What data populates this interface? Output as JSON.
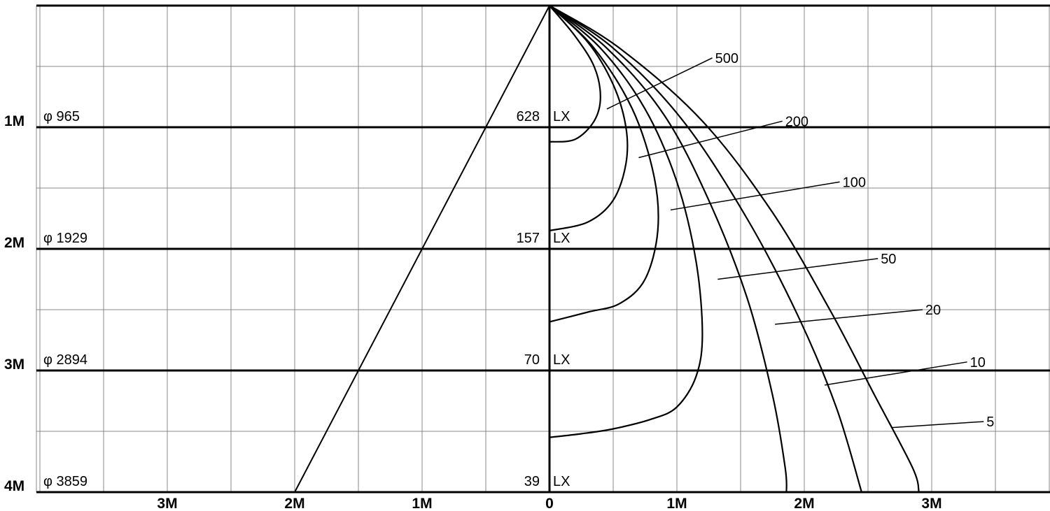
{
  "chart_data": {
    "type": "line",
    "title": "",
    "x_unit": "M",
    "y_unit": "M",
    "xlim": [
      -4,
      4
    ],
    "ylim": [
      4,
      0
    ],
    "grid": true,
    "x_tick_labels": [
      {
        "value": -3,
        "label": "3M"
      },
      {
        "value": -2,
        "label": "2M"
      },
      {
        "value": -1,
        "label": "1M"
      },
      {
        "value": 0,
        "label": "0"
      },
      {
        "value": 1,
        "label": "1M"
      },
      {
        "value": 2,
        "label": "2M"
      },
      {
        "value": 3,
        "label": "3M"
      }
    ],
    "distance_rows": [
      {
        "distance": 1,
        "label": "1M",
        "diameter": "965",
        "lux": "628"
      },
      {
        "distance": 2,
        "label": "2M",
        "diameter": "1929",
        "lux": "157"
      },
      {
        "distance": 3,
        "label": "3M",
        "diameter": "2894",
        "lux": "70"
      },
      {
        "distance": 4,
        "label": "4M",
        "diameter": "3859",
        "lux": "39"
      }
    ],
    "diameter_symbol": "φ",
    "lux_unit": "LX",
    "beam_edge": [
      [
        0,
        0
      ],
      [
        -2,
        4
      ]
    ],
    "series": [
      {
        "name": "500",
        "points": [
          [
            0,
            0
          ],
          [
            0.2,
            0.25
          ],
          [
            0.35,
            0.5
          ],
          [
            0.4,
            0.75
          ],
          [
            0.35,
            0.95
          ],
          [
            0.2,
            1.1
          ],
          [
            0,
            1.12
          ]
        ],
        "label_at": [
          1.3,
          0.43
        ],
        "leader_from": [
          0.45,
          0.85
        ]
      },
      {
        "name": "200",
        "points": [
          [
            0,
            0
          ],
          [
            0.3,
            0.3
          ],
          [
            0.5,
            0.65
          ],
          [
            0.6,
            1.0
          ],
          [
            0.6,
            1.3
          ],
          [
            0.5,
            1.6
          ],
          [
            0.3,
            1.78
          ],
          [
            0,
            1.85
          ]
        ],
        "label_at": [
          1.85,
          0.95
        ],
        "leader_from": [
          0.7,
          1.25
        ]
      },
      {
        "name": "100",
        "points": [
          [
            0,
            0
          ],
          [
            0.35,
            0.35
          ],
          [
            0.65,
            0.85
          ],
          [
            0.82,
            1.4
          ],
          [
            0.85,
            1.85
          ],
          [
            0.75,
            2.25
          ],
          [
            0.55,
            2.45
          ],
          [
            0.3,
            2.52
          ],
          [
            0,
            2.6
          ]
        ],
        "label_at": [
          2.3,
          1.45
        ],
        "leader_from": [
          0.95,
          1.68
        ]
      },
      {
        "name": "50",
        "points": [
          [
            0,
            0
          ],
          [
            0.4,
            0.35
          ],
          [
            0.75,
            0.85
          ],
          [
            1.0,
            1.45
          ],
          [
            1.15,
            2.1
          ],
          [
            1.2,
            2.7
          ],
          [
            1.15,
            3.05
          ],
          [
            1.0,
            3.3
          ],
          [
            0.8,
            3.4
          ],
          [
            0.5,
            3.48
          ],
          [
            0.25,
            3.52
          ],
          [
            0,
            3.55
          ]
        ],
        "label_at": [
          2.6,
          2.08
        ],
        "leader_from": [
          1.32,
          2.25
        ]
      },
      {
        "name": "20",
        "points": [
          [
            0,
            0
          ],
          [
            0.45,
            0.35
          ],
          [
            0.9,
            0.9
          ],
          [
            1.25,
            1.6
          ],
          [
            1.55,
            2.4
          ],
          [
            1.75,
            3.2
          ],
          [
            1.85,
            3.8
          ],
          [
            1.86,
            4.0
          ]
        ],
        "label_at": [
          2.95,
          2.5
        ],
        "leader_from": [
          1.77,
          2.62
        ]
      },
      {
        "name": "10",
        "points": [
          [
            0,
            0
          ],
          [
            0.5,
            0.35
          ],
          [
            1.05,
            0.95
          ],
          [
            1.55,
            1.75
          ],
          [
            1.95,
            2.55
          ],
          [
            2.25,
            3.3
          ],
          [
            2.45,
            4.0
          ]
        ],
        "label_at": [
          3.3,
          2.93
        ],
        "leader_from": [
          2.16,
          3.12
        ]
      },
      {
        "name": "5",
        "points": [
          [
            0,
            0
          ],
          [
            0.55,
            0.35
          ],
          [
            1.2,
            0.95
          ],
          [
            1.75,
            1.7
          ],
          [
            2.2,
            2.5
          ],
          [
            2.55,
            3.2
          ],
          [
            2.85,
            3.8
          ],
          [
            2.9,
            4.0
          ]
        ],
        "label_at": [
          3.43,
          3.42
        ],
        "leader_from": [
          2.68,
          3.47
        ]
      }
    ]
  }
}
